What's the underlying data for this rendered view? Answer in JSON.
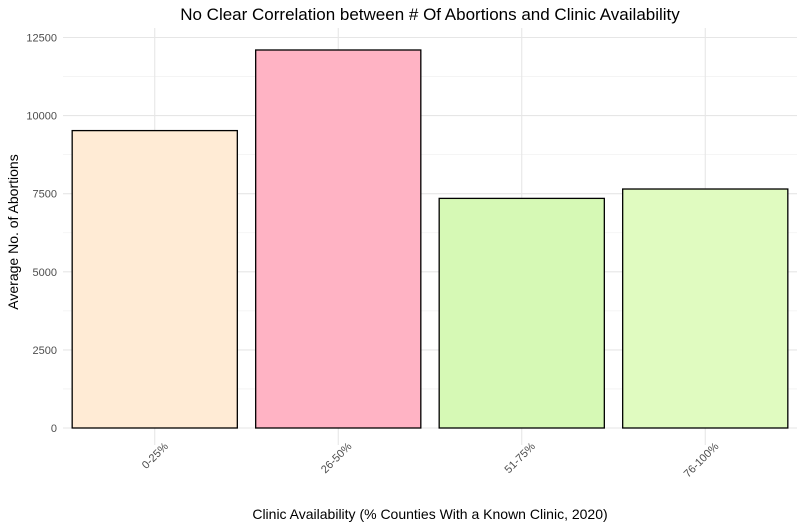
{
  "chart_data": {
    "type": "bar",
    "title": "No Clear Correlation between # Of Abortions and Clinic Availability",
    "xlabel": "Clinic Availability (% Counties With a Known Clinic, 2020)",
    "ylabel": "Average No. of Abortions",
    "categories": [
      "0-25%",
      "26-50%",
      "51-75%",
      "76-100%"
    ],
    "values": [
      9520,
      12100,
      7350,
      7650
    ],
    "colors": [
      "#ffebd5",
      "#ffb3c4",
      "#d6f9b5",
      "#e0fbc0"
    ],
    "ylim": [
      0,
      12500
    ],
    "yticks": [
      0,
      2500,
      5000,
      7500,
      10000,
      12500
    ],
    "ytick_labels": [
      "0",
      "2500",
      "5000",
      "7500",
      "10000",
      "12500"
    ],
    "grid": true,
    "legend": "none"
  }
}
